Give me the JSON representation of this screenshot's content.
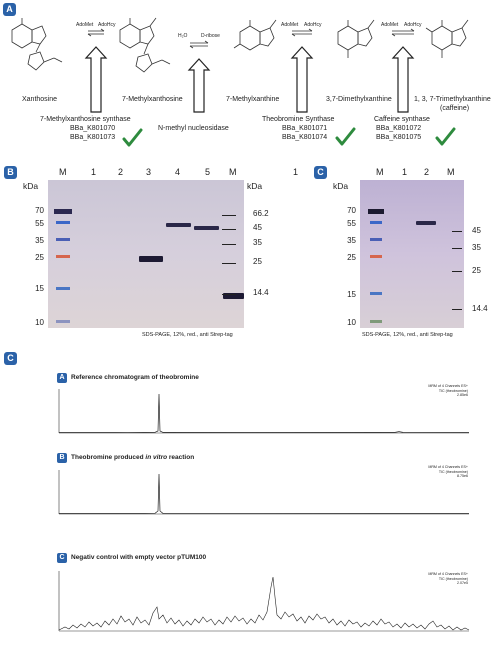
{
  "panel_a": {
    "badge": "A",
    "compounds": [
      "Xanthosine",
      "7-Methylxanthosine",
      "7-Methylxanthine",
      "3,7-Dimethylxanthine",
      "1, 3, 7-Trimethylxanthine",
      "(caffeine)"
    ],
    "reactions": [
      {
        "left": "AdoMet",
        "right": "AdoHcy"
      },
      {
        "left": "H₂O",
        "right": "D-ribose"
      },
      {
        "left": "AdoMet",
        "right": "AdoHcy"
      },
      {
        "left": "AdoMet",
        "right": "AdoHcy"
      }
    ],
    "enzymes": [
      {
        "name": "7-Methylxanthosine synthase",
        "parts": [
          "BBa_K801070",
          "BBa_K801073"
        ]
      },
      {
        "name": "N-methyl nucleosidase",
        "parts": []
      },
      {
        "name": "Theobromine Synthase",
        "parts": [
          "BBa_K801071",
          "BBa_K801074"
        ]
      },
      {
        "name": "Caffeine synthase",
        "parts": [
          "BBa_K801072",
          "BBa_K801075"
        ]
      }
    ],
    "check_color": "#2e8b3e"
  },
  "panel_b": {
    "badge": "B",
    "unit": "kDa",
    "lanes": [
      "M",
      "1",
      "2",
      "3",
      "4",
      "5",
      "M"
    ],
    "extra_lane": "1",
    "left_markers": [
      "70",
      "55",
      "35",
      "25",
      "15",
      "10"
    ],
    "right_markers": [
      "66.2",
      "45",
      "35",
      "25",
      "14.4"
    ],
    "caption": "SDS-PAGE, 12%, red., anti Strep-tag"
  },
  "panel_c_gel": {
    "badge": "C",
    "unit": "kDa",
    "lanes": [
      "M",
      "1",
      "2",
      "M"
    ],
    "left_markers": [
      "70",
      "55",
      "35",
      "25",
      "15",
      "10"
    ],
    "right_markers": [
      "45",
      "35",
      "25",
      "14.4"
    ],
    "caption": "SDS-PAGE, 12%, red., anti Strep-tag"
  },
  "panel_c_chrom": {
    "badge": "C",
    "charts": [
      {
        "badge": "A",
        "title": "Reference chromatogram of theobromine",
        "title_italic": "",
        "title_tail": "",
        "legend": [
          "MRM of 4 Channels ES+",
          "TIC (theobromine)",
          "2.85e6"
        ]
      },
      {
        "badge": "B",
        "title": "Theobromine produced ",
        "title_italic": "in vitro",
        "title_tail": " reaction",
        "legend": [
          "MRM of 4 Channels ES+",
          "TIC (theobromine)",
          "8.75e6"
        ]
      },
      {
        "badge": "C",
        "title": "Negativ control with empty vector pTUM100",
        "title_italic": "",
        "title_tail": "",
        "legend": [
          "MRM of 4 Channels ES+",
          "TIC (theobromine)",
          "2.07e5"
        ]
      }
    ]
  }
}
